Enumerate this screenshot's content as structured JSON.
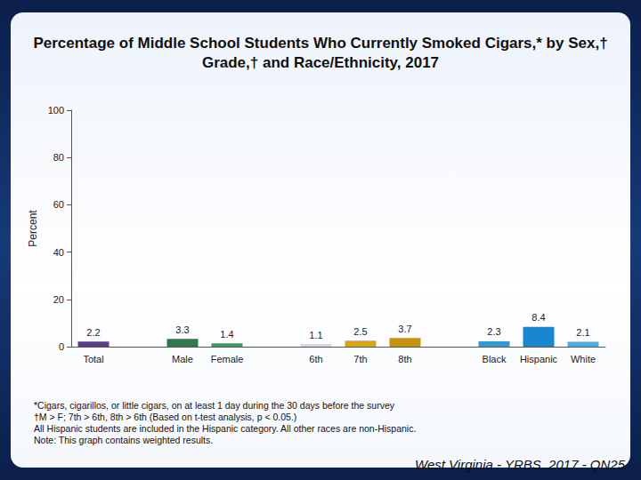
{
  "chart_data": {
    "type": "bar",
    "title": "Percentage of Middle School Students Who Currently Smoked Cigars,* by Sex,† Grade,† and Race/Ethnicity, 2017",
    "y_label": "Percent",
    "categories": [
      "Total",
      null,
      "Male",
      "Female",
      null,
      "6th",
      "7th",
      "8th",
      null,
      "Black",
      "Hispanic",
      "White"
    ],
    "values": [
      2.2,
      null,
      3.3,
      1.4,
      null,
      1.1,
      2.5,
      3.7,
      null,
      2.3,
      8.4,
      2.1
    ],
    "colors": [
      "#5b3f8c",
      null,
      "#2f7a4c",
      "#3f9a5e",
      null,
      "#d6d6e6",
      "#d8a51a",
      "#c6920c",
      null,
      "#2f9ad6",
      "#1b86d0",
      "#4aaee2"
    ],
    "ylim": [
      0,
      100
    ],
    "yticks": [
      0,
      20,
      40,
      60,
      80,
      100
    ],
    "grid": false,
    "data_labels": true,
    "notes": [
      "*Cigars, cigarillos, or little cigars, on at least 1 day during the 30 days before the survey",
      "†M > F; 7th > 6th, 8th > 6th (Based on t-test analysis, p < 0.05.)",
      "All Hispanic students are included in the Hispanic category.  All other races are non-Hispanic.",
      "Note: This graph contains weighted results."
    ],
    "source": "West Virginia - YRBS, 2017 - QN25"
  }
}
